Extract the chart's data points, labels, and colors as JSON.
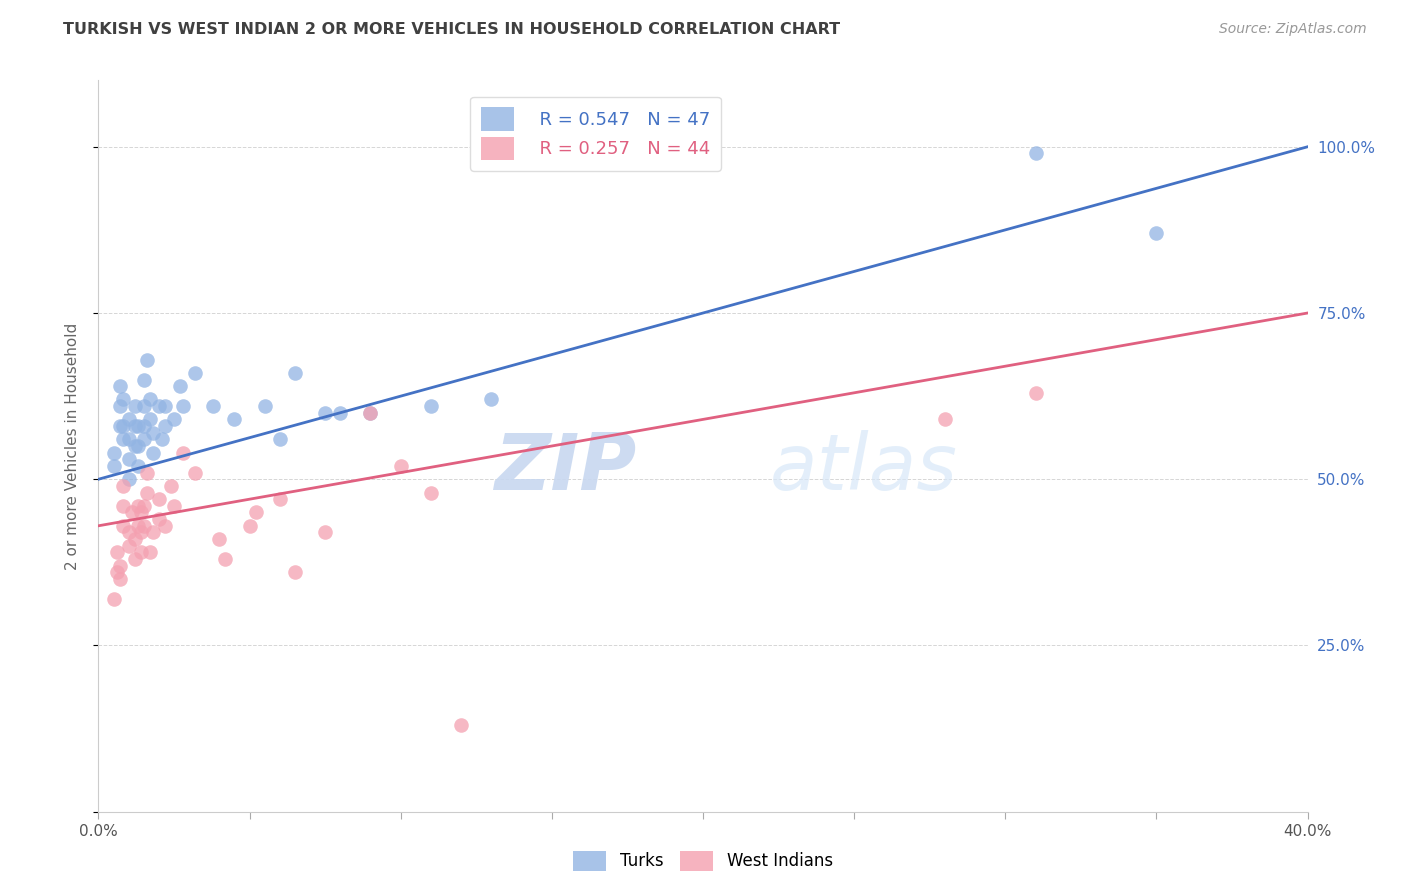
{
  "title": "TURKISH VS WEST INDIAN 2 OR MORE VEHICLES IN HOUSEHOLD CORRELATION CHART",
  "source": "Source: ZipAtlas.com",
  "ylabel": "2 or more Vehicles in Household",
  "xlabel_turks": "Turks",
  "xlabel_westindians": "West Indians",
  "legend_turks_R": "0.547",
  "legend_turks_N": "47",
  "legend_wi_R": "0.257",
  "legend_wi_N": "44",
  "turks_color": "#92B4E3",
  "westindians_color": "#F4A0B0",
  "line_turks_color": "#4472C4",
  "line_westindians_color": "#E06080",
  "xmin": 0.0,
  "xmax": 0.4,
  "ymin": 0.0,
  "ymax": 1.1,
  "ytick_vals": [
    0.0,
    0.25,
    0.5,
    0.75,
    1.0
  ],
  "ytick_labels_right": [
    "",
    "25.0%",
    "50.0%",
    "75.0%",
    "100.0%"
  ],
  "xtick_vals": [
    0.0,
    0.05,
    0.1,
    0.15,
    0.2,
    0.25,
    0.3,
    0.35,
    0.4
  ],
  "xtick_labels": [
    "0.0%",
    "",
    "",
    "",
    "",
    "",
    "",
    "",
    "40.0%"
  ],
  "watermark_zip": "ZIP",
  "watermark_atlas": "atlas",
  "title_color": "#404040",
  "right_tick_color": "#4472C4",
  "background_color": "#FFFFFF",
  "turks_x": [
    0.005,
    0.005,
    0.007,
    0.007,
    0.007,
    0.008,
    0.008,
    0.008,
    0.01,
    0.01,
    0.01,
    0.01,
    0.012,
    0.012,
    0.012,
    0.013,
    0.013,
    0.013,
    0.015,
    0.015,
    0.015,
    0.015,
    0.016,
    0.017,
    0.017,
    0.018,
    0.018,
    0.02,
    0.021,
    0.022,
    0.022,
    0.025,
    0.027,
    0.028,
    0.032,
    0.038,
    0.045,
    0.055,
    0.06,
    0.065,
    0.075,
    0.08,
    0.09,
    0.11,
    0.13,
    0.31,
    0.35
  ],
  "turks_y": [
    0.52,
    0.54,
    0.58,
    0.61,
    0.64,
    0.56,
    0.58,
    0.62,
    0.5,
    0.53,
    0.56,
    0.59,
    0.55,
    0.58,
    0.61,
    0.52,
    0.55,
    0.58,
    0.56,
    0.58,
    0.61,
    0.65,
    0.68,
    0.59,
    0.62,
    0.54,
    0.57,
    0.61,
    0.56,
    0.58,
    0.61,
    0.59,
    0.64,
    0.61,
    0.66,
    0.61,
    0.59,
    0.61,
    0.56,
    0.66,
    0.6,
    0.6,
    0.6,
    0.61,
    0.62,
    0.99,
    0.87
  ],
  "wi_x": [
    0.005,
    0.006,
    0.006,
    0.007,
    0.007,
    0.008,
    0.008,
    0.008,
    0.01,
    0.01,
    0.011,
    0.012,
    0.012,
    0.013,
    0.013,
    0.014,
    0.014,
    0.014,
    0.015,
    0.015,
    0.016,
    0.016,
    0.017,
    0.018,
    0.02,
    0.02,
    0.022,
    0.024,
    0.025,
    0.028,
    0.032,
    0.04,
    0.042,
    0.05,
    0.052,
    0.06,
    0.065,
    0.075,
    0.09,
    0.1,
    0.11,
    0.12,
    0.28,
    0.31
  ],
  "wi_y": [
    0.32,
    0.36,
    0.39,
    0.35,
    0.37,
    0.43,
    0.46,
    0.49,
    0.4,
    0.42,
    0.45,
    0.38,
    0.41,
    0.43,
    0.46,
    0.39,
    0.42,
    0.45,
    0.43,
    0.46,
    0.48,
    0.51,
    0.39,
    0.42,
    0.44,
    0.47,
    0.43,
    0.49,
    0.46,
    0.54,
    0.51,
    0.41,
    0.38,
    0.43,
    0.45,
    0.47,
    0.36,
    0.42,
    0.6,
    0.52,
    0.48,
    0.13,
    0.59,
    0.63
  ]
}
